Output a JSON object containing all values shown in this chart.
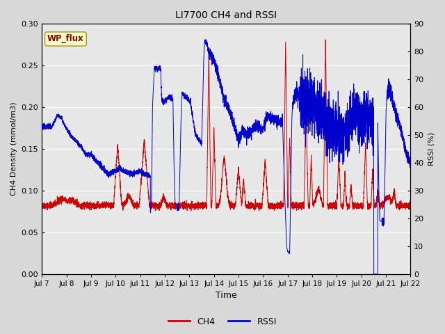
{
  "title": "LI7700 CH4 and RSSI",
  "xlabel": "Time",
  "ylabel_left": "CH4 Density (mmol/m3)",
  "ylabel_right": "RSSI (%)",
  "annotation": "WP_flux",
  "ylim_left": [
    0.0,
    0.3
  ],
  "ylim_right": [
    0,
    90
  ],
  "yticks_left": [
    0.0,
    0.05,
    0.1,
    0.15,
    0.2,
    0.25,
    0.3
  ],
  "yticks_right": [
    0,
    10,
    20,
    30,
    40,
    50,
    60,
    70,
    80,
    90
  ],
  "xtick_labels": [
    "Jul 7",
    "Jul 8",
    "Jul 9",
    "Jul 10",
    "Jul 11",
    "Jul 12",
    "Jul 13",
    "Jul 14",
    "Jul 15",
    "Jul 16",
    "Jul 17",
    "Jul 18",
    "Jul 19",
    "Jul 20",
    "Jul 21",
    "Jul 22"
  ],
  "ch4_color": "#cc0000",
  "rssi_color": "#0000cc",
  "plot_bg_color": "#e8e8e8",
  "outer_bg_color": "#d8d8d8",
  "grid_color": "#ffffff",
  "annotation_bg": "#ffffcc",
  "annotation_border": "#999900",
  "annotation_text_color": "#880000"
}
